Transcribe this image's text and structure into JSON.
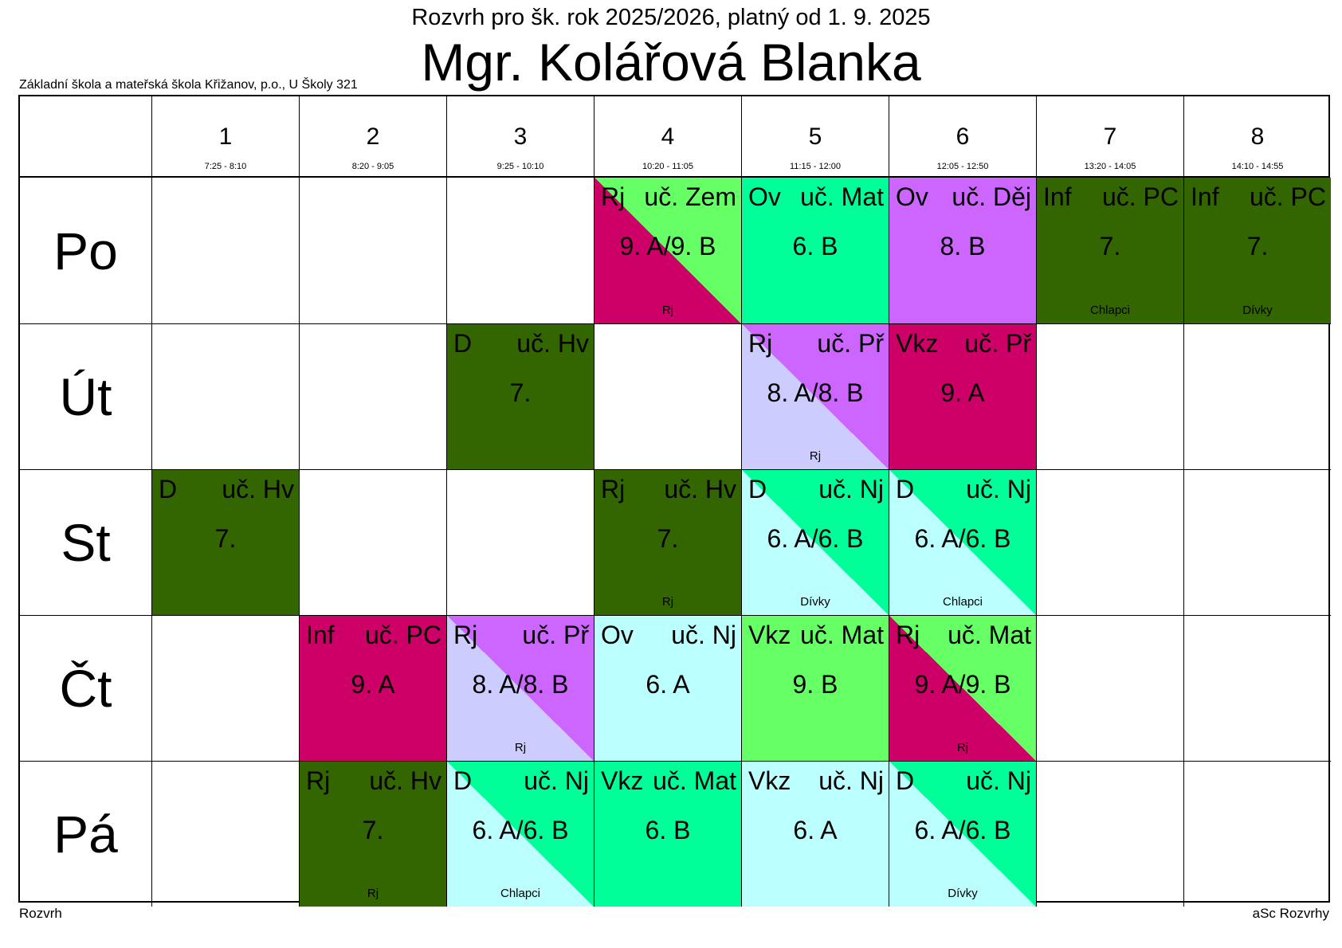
{
  "header": {
    "subtitle": "Rozvrh pro šk. rok 2025/2026, platný od 1. 9. 2025",
    "title": "Mgr. Kolářová Blanka",
    "school": "Základní škola a mateřská škola Křižanov, p.o., U Školy 321"
  },
  "footer": {
    "left": "Rozvrh",
    "right": "aSc Rozvrhy"
  },
  "periods": [
    {
      "num": "1",
      "time": "7:25 - 8:10"
    },
    {
      "num": "2",
      "time": "8:20 - 9:05"
    },
    {
      "num": "3",
      "time": "9:25 - 10:10"
    },
    {
      "num": "4",
      "time": "10:20 - 11:05"
    },
    {
      "num": "5",
      "time": "11:15 - 12:00"
    },
    {
      "num": "6",
      "time": "12:05 - 12:50"
    },
    {
      "num": "7",
      "time": "13:20 - 14:05"
    },
    {
      "num": "8",
      "time": "14:10 - 14:55"
    }
  ],
  "days": [
    "Po",
    "Út",
    "St",
    "Čt",
    "Pá"
  ],
  "colors": {
    "dark_green": "#336600",
    "magenta": "#cc0066",
    "light_green": "#66ff66",
    "mint": "#00ff99",
    "violet": "#cc66ff",
    "lavender": "#ccccff",
    "light_cyan": "#bbffff"
  },
  "lessons": [
    {
      "day": 0,
      "period": 4,
      "subject": "Rj",
      "room": "uč. Zem",
      "class": "9. A/9. B",
      "group": "Rj",
      "color": "#cc0066",
      "color2": "#66ff66"
    },
    {
      "day": 0,
      "period": 5,
      "subject": "Ov",
      "room": "uč. Mat",
      "class": "6. B",
      "group": "",
      "color": "#00ff99",
      "color2": ""
    },
    {
      "day": 0,
      "period": 6,
      "subject": "Ov",
      "room": "uč. Děj",
      "class": "8. B",
      "group": "",
      "color": "#cc66ff",
      "color2": ""
    },
    {
      "day": 0,
      "period": 7,
      "subject": "Inf",
      "room": "uč. PC",
      "class": "7.",
      "group": "Chlapci",
      "color": "#336600",
      "color2": ""
    },
    {
      "day": 0,
      "period": 8,
      "subject": "Inf",
      "room": "uč. PC",
      "class": "7.",
      "group": "Dívky",
      "color": "#336600",
      "color2": ""
    },
    {
      "day": 1,
      "period": 3,
      "subject": "D",
      "room": "uč. Hv",
      "class": "7.",
      "group": "",
      "color": "#336600",
      "color2": ""
    },
    {
      "day": 1,
      "period": 5,
      "subject": "Rj",
      "room": "uč. Př",
      "class": "8. A/8. B",
      "group": "Rj",
      "color": "#ccccff",
      "color2": "#cc66ff"
    },
    {
      "day": 1,
      "period": 6,
      "subject": "Vkz",
      "room": "uč. Př",
      "class": "9. A",
      "group": "",
      "color": "#cc0066",
      "color2": ""
    },
    {
      "day": 2,
      "period": 1,
      "subject": "D",
      "room": "uč. Hv",
      "class": "7.",
      "group": "",
      "color": "#336600",
      "color2": ""
    },
    {
      "day": 2,
      "period": 4,
      "subject": "Rj",
      "room": "uč. Hv",
      "class": "7.",
      "group": "Rj",
      "color": "#336600",
      "color2": ""
    },
    {
      "day": 2,
      "period": 5,
      "subject": "D",
      "room": "uč. Nj",
      "class": "6. A/6. B",
      "group": "Dívky",
      "color": "#bbffff",
      "color2": "#00ff99"
    },
    {
      "day": 2,
      "period": 6,
      "subject": "D",
      "room": "uč. Nj",
      "class": "6. A/6. B",
      "group": "Chlapci",
      "color": "#bbffff",
      "color2": "#00ff99"
    },
    {
      "day": 3,
      "period": 2,
      "subject": "Inf",
      "room": "uč. PC",
      "class": "9. A",
      "group": "",
      "color": "#cc0066",
      "color2": ""
    },
    {
      "day": 3,
      "period": 3,
      "subject": "Rj",
      "room": "uč. Př",
      "class": "8. A/8. B",
      "group": "Rj",
      "color": "#ccccff",
      "color2": "#cc66ff"
    },
    {
      "day": 3,
      "period": 4,
      "subject": "Ov",
      "room": "uč. Nj",
      "class": "6. A",
      "group": "",
      "color": "#bbffff",
      "color2": ""
    },
    {
      "day": 3,
      "period": 5,
      "subject": "Vkz",
      "room": "uč. Mat",
      "class": "9. B",
      "group": "",
      "color": "#66ff66",
      "color2": ""
    },
    {
      "day": 3,
      "period": 6,
      "subject": "Rj",
      "room": "uč. Mat",
      "class": "9. A/9. B",
      "group": "Rj",
      "color": "#cc0066",
      "color2": "#66ff66"
    },
    {
      "day": 4,
      "period": 2,
      "subject": "Rj",
      "room": "uč. Hv",
      "class": "7.",
      "group": "Rj",
      "color": "#336600",
      "color2": ""
    },
    {
      "day": 4,
      "period": 3,
      "subject": "D",
      "room": "uč. Nj",
      "class": "6. A/6. B",
      "group": "Chlapci",
      "color": "#bbffff",
      "color2": "#00ff99"
    },
    {
      "day": 4,
      "period": 4,
      "subject": "Vkz",
      "room": "uč. Mat",
      "class": "6. B",
      "group": "",
      "color": "#00ff99",
      "color2": ""
    },
    {
      "day": 4,
      "period": 5,
      "subject": "Vkz",
      "room": "uč. Nj",
      "class": "6. A",
      "group": "",
      "color": "#bbffff",
      "color2": ""
    },
    {
      "day": 4,
      "period": 6,
      "subject": "D",
      "room": "uč. Nj",
      "class": "6. A/6. B",
      "group": "Dívky",
      "color": "#bbffff",
      "color2": "#00ff99"
    }
  ]
}
